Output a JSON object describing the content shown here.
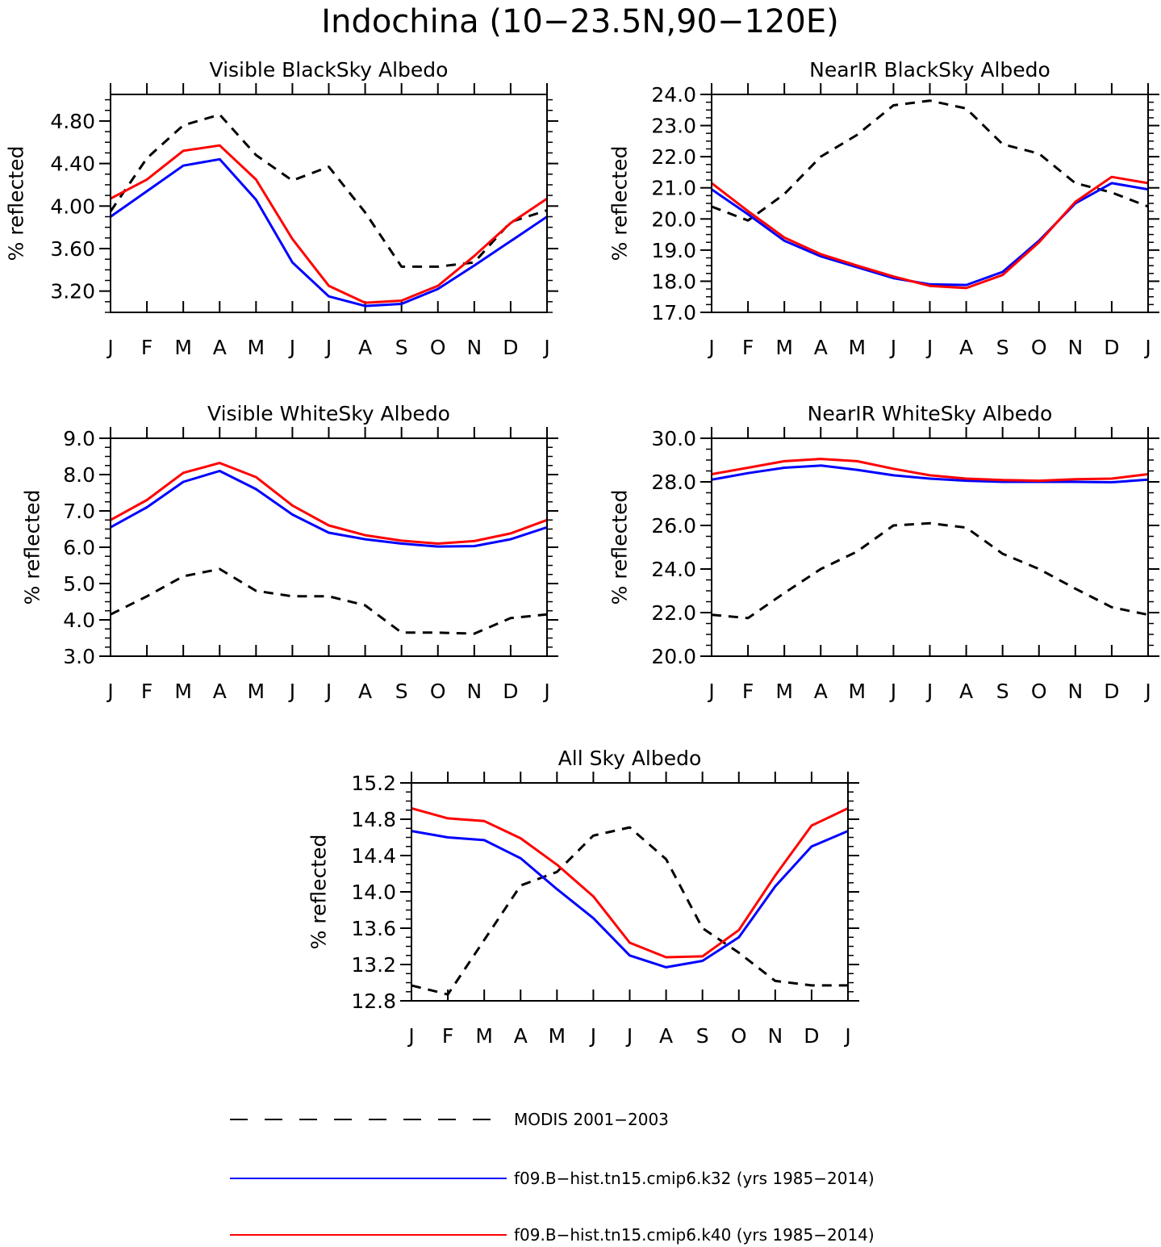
{
  "figure": {
    "title": "Indochina (10−23.5N,90−120E)"
  },
  "colors": {
    "MODIS 2001−2003": "#000000",
    "f09.B−hist.tn15.cmip6.k32 (yrs 1985−2014)": "#0000ff",
    "f09.B−hist.tn15.cmip6.k40 (yrs 1985−2014)": "#ff0000"
  },
  "legend": {
    "placement": "bottom",
    "items": [
      {
        "label": "MODIS 2001−2003",
        "color": "#000000",
        "style": "dashed"
      },
      {
        "label": "f09.B−hist.tn15.cmip6.k32 (yrs 1985−2014)",
        "color": "#0000ff",
        "style": "solid"
      },
      {
        "label": "f09.B−hist.tn15.cmip6.k40 (yrs 1985−2014)",
        "color": "#ff0000",
        "style": "solid"
      }
    ]
  },
  "chart_data": [
    {
      "type": "line",
      "title": "Visible BlackSky Albedo",
      "ylabel": "% reflected",
      "categories": [
        "J",
        "F",
        "M",
        "A",
        "M",
        "J",
        "J",
        "A",
        "S",
        "O",
        "N",
        "D",
        "J"
      ],
      "ylim": [
        3.0,
        5.05
      ],
      "yticks": [
        "3.20",
        "3.60",
        "4.00",
        "4.40",
        "4.80"
      ],
      "series": [
        {
          "name": "MODIS 2001−2003",
          "values": [
            3.95,
            4.45,
            4.76,
            4.86,
            4.48,
            4.24,
            4.37,
            3.94,
            3.43,
            3.43,
            3.47,
            3.85,
            3.96
          ]
        },
        {
          "name": "f09.B−hist.tn15.cmip6.k32 (yrs 1985−2014)",
          "values": [
            3.9,
            4.14,
            4.38,
            4.44,
            4.06,
            3.47,
            3.15,
            3.06,
            3.08,
            3.22,
            3.44,
            3.67,
            3.9
          ]
        },
        {
          "name": "f09.B−hist.tn15.cmip6.k40 (yrs 1985−2014)",
          "values": [
            4.07,
            4.25,
            4.52,
            4.57,
            4.25,
            3.69,
            3.25,
            3.09,
            3.11,
            3.25,
            3.53,
            3.84,
            4.07
          ]
        }
      ]
    },
    {
      "type": "line",
      "title": "NearIR BlackSky Albedo",
      "ylabel": "% reflected",
      "categories": [
        "J",
        "F",
        "M",
        "A",
        "M",
        "J",
        "J",
        "A",
        "S",
        "O",
        "N",
        "D",
        "J"
      ],
      "ylim": [
        17.0,
        24.0
      ],
      "yticks": [
        "17.0",
        "18.0",
        "19.0",
        "20.0",
        "21.0",
        "22.0",
        "23.0",
        "24.0"
      ],
      "series": [
        {
          "name": "MODIS 2001−2003",
          "values": [
            20.4,
            19.95,
            20.8,
            22.0,
            22.7,
            23.65,
            23.8,
            23.55,
            22.4,
            22.1,
            21.15,
            20.85,
            20.4
          ]
        },
        {
          "name": "f09.B−hist.tn15.cmip6.k32 (yrs 1985−2014)",
          "values": [
            20.95,
            20.15,
            19.3,
            18.8,
            18.45,
            18.1,
            17.9,
            17.88,
            18.3,
            19.3,
            20.5,
            21.15,
            20.95
          ]
        },
        {
          "name": "f09.B−hist.tn15.cmip6.k40 (yrs 1985−2014)",
          "values": [
            21.15,
            20.25,
            19.4,
            18.87,
            18.5,
            18.15,
            17.85,
            17.78,
            18.2,
            19.25,
            20.55,
            21.35,
            21.15
          ]
        }
      ]
    },
    {
      "type": "line",
      "title": "Visible WhiteSky Albedo",
      "ylabel": "% reflected",
      "categories": [
        "J",
        "F",
        "M",
        "A",
        "M",
        "J",
        "J",
        "A",
        "S",
        "O",
        "N",
        "D",
        "J"
      ],
      "ylim": [
        3.0,
        9.0
      ],
      "yticks": [
        "3.0",
        "4.0",
        "5.0",
        "6.0",
        "7.0",
        "8.0",
        "9.0"
      ],
      "series": [
        {
          "name": "MODIS 2001−2003",
          "values": [
            4.15,
            4.65,
            5.2,
            5.4,
            4.8,
            4.65,
            4.65,
            4.4,
            3.65,
            3.65,
            3.62,
            4.05,
            4.15
          ]
        },
        {
          "name": "f09.B−hist.tn15.cmip6.k32 (yrs 1985−2014)",
          "values": [
            6.55,
            7.1,
            7.8,
            8.1,
            7.6,
            6.9,
            6.4,
            6.22,
            6.1,
            6.02,
            6.03,
            6.22,
            6.55
          ]
        },
        {
          "name": "f09.B−hist.tn15.cmip6.k40 (yrs 1985−2014)",
          "values": [
            6.75,
            7.3,
            8.05,
            8.32,
            7.93,
            7.15,
            6.6,
            6.33,
            6.18,
            6.1,
            6.17,
            6.38,
            6.75
          ]
        }
      ]
    },
    {
      "type": "line",
      "title": "NearIR WhiteSky Albedo",
      "ylabel": "% reflected",
      "categories": [
        "J",
        "F",
        "M",
        "A",
        "M",
        "J",
        "J",
        "A",
        "S",
        "O",
        "N",
        "D",
        "J"
      ],
      "ylim": [
        20.0,
        30.0
      ],
      "yticks": [
        "20.0",
        "22.0",
        "24.0",
        "26.0",
        "28.0",
        "30.0"
      ],
      "series": [
        {
          "name": "MODIS 2001−2003",
          "values": [
            21.9,
            21.75,
            22.9,
            24.0,
            24.8,
            26.0,
            26.1,
            25.9,
            24.7,
            24.0,
            23.1,
            22.25,
            21.9
          ]
        },
        {
          "name": "f09.B−hist.tn15.cmip6.k32 (yrs 1985−2014)",
          "values": [
            28.1,
            28.4,
            28.65,
            28.75,
            28.55,
            28.3,
            28.15,
            28.05,
            28.0,
            28.0,
            28.0,
            27.98,
            28.1
          ]
        },
        {
          "name": "f09.B−hist.tn15.cmip6.k40 (yrs 1985−2014)",
          "values": [
            28.35,
            28.65,
            28.95,
            29.05,
            28.95,
            28.6,
            28.3,
            28.15,
            28.08,
            28.05,
            28.12,
            28.15,
            28.35
          ]
        }
      ]
    },
    {
      "type": "line",
      "title": "All Sky Albedo",
      "ylabel": "% reflected",
      "categories": [
        "J",
        "F",
        "M",
        "A",
        "M",
        "J",
        "J",
        "A",
        "S",
        "O",
        "N",
        "D",
        "J"
      ],
      "ylim": [
        12.8,
        15.2
      ],
      "yticks": [
        "12.8",
        "13.2",
        "13.6",
        "14.0",
        "14.4",
        "14.8",
        "15.2"
      ],
      "series": [
        {
          "name": "MODIS 2001−2003",
          "values": [
            12.97,
            12.87,
            13.47,
            14.07,
            14.22,
            14.62,
            14.71,
            14.36,
            13.6,
            13.33,
            13.02,
            12.97,
            12.97
          ]
        },
        {
          "name": "f09.B−hist.tn15.cmip6.k32 (yrs 1985−2014)",
          "values": [
            14.67,
            14.6,
            14.57,
            14.37,
            14.03,
            13.71,
            13.3,
            13.17,
            13.24,
            13.5,
            14.06,
            14.5,
            14.67
          ]
        },
        {
          "name": "f09.B−hist.tn15.cmip6.k40 (yrs 1985−2014)",
          "values": [
            14.92,
            14.81,
            14.78,
            14.59,
            14.3,
            13.95,
            13.44,
            13.28,
            13.29,
            13.58,
            14.18,
            14.73,
            14.92
          ]
        }
      ]
    }
  ]
}
